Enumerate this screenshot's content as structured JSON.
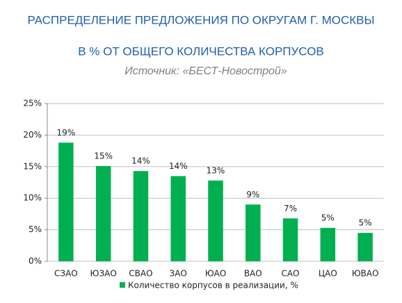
{
  "chart_data": {
    "type": "bar",
    "title_lines": [
      "РАСПРЕДЕЛЕНИЕ ПРЕДЛОЖЕНИЯ ПО ОКРУГАМ Г. МОСКВЫ",
      "В % ОТ ОБЩЕГО КОЛИЧЕСТВА КОРПУСОВ"
    ],
    "source": "Источник: «БЕСТ-Новострой»",
    "categories": [
      "СЗАО",
      "ЮЗАО",
      "СВАО",
      "ЗАО",
      "ЮАО",
      "ВАО",
      "САО",
      "ЦАО",
      "ЮВАО"
    ],
    "series": [
      {
        "name": "Количество корпусов в реализации, %",
        "color": "#00b050",
        "values": [
          18.8,
          15.1,
          14.3,
          13.5,
          12.8,
          9.0,
          6.8,
          5.3,
          4.5
        ],
        "value_labels": [
          "19%",
          "15%",
          "14%",
          "14%",
          "13%",
          "9%",
          "7%",
          "5%",
          "5%"
        ]
      }
    ],
    "ylim": [
      0,
      25
    ],
    "yticks": [
      {
        "value": 0,
        "label": "0%"
      },
      {
        "value": 5,
        "label": "5%"
      },
      {
        "value": 10,
        "label": "10%"
      },
      {
        "value": 15,
        "label": "15%"
      },
      {
        "value": 20,
        "label": "20%"
      },
      {
        "value": 25,
        "label": "25%"
      }
    ],
    "grid": true,
    "legend": "bottom"
  }
}
